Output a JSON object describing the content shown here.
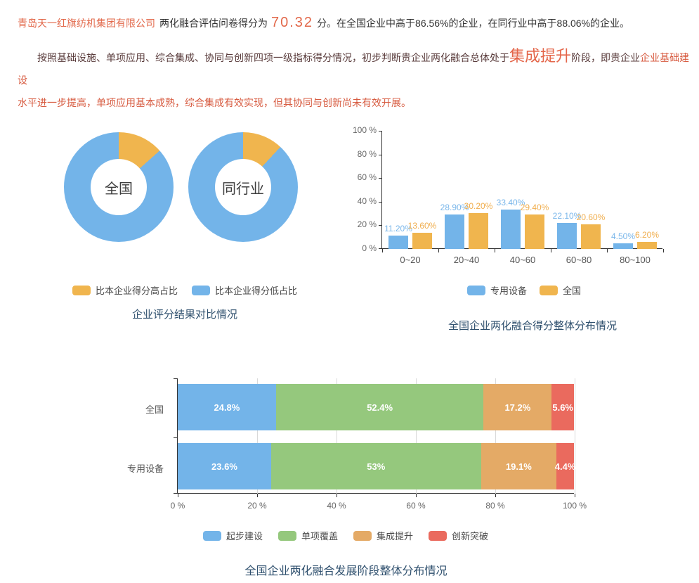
{
  "colors": {
    "blue": "#73b4e9",
    "yellow": "#f0b54e",
    "green": "#95c87d",
    "orange": "#e4aa66",
    "red": "#ea6a5e",
    "title": "#2f506e",
    "accent": "#e2684a",
    "dark_red_text": "#5a3c3c",
    "orange_text": "#d75b40",
    "blue_label": "#79b6ea",
    "yellow_label": "#f0ae4e"
  },
  "header": {
    "company": "青岛天一红旗纺机集团有限公司",
    "score_label": "两化融合评估问卷得分为",
    "score": "70.32",
    "score_suffix": "分。在全国企业中高于86.56%的企业，在同行业中高于88.06%的企业。",
    "para2_part1": "按照基础设施、单项应用、综合集成、协同与创新四项一级指标得分情况，初步判断贵企业两化融合总体处于",
    "para2_stage": "集成提升",
    "para2_part2": "阶段，即贵企业",
    "para2_orange_line1": "企业基础建设",
    "para2_orange_line2": "水平进一步提高，单项应用基本成熟，综合集成有效实现，但其协同与创新尚未有效开展。"
  },
  "chart_data": [
    {
      "type": "pie",
      "subtype": "donut-pair",
      "title": "企业评分结果对比情况",
      "legend": [
        {
          "label": "比本企业得分高占比",
          "color_key": "yellow"
        },
        {
          "label": "比本企业得分低占比",
          "color_key": "blue"
        }
      ],
      "donuts": [
        {
          "label": "全国",
          "high_pct": 13.44,
          "low_pct": 86.56
        },
        {
          "label": "同行业",
          "high_pct": 11.94,
          "low_pct": 88.06
        }
      ]
    },
    {
      "type": "bar",
      "title": "全国企业两化融合得分整体分布情况",
      "categories": [
        "0~20",
        "20~40",
        "40~60",
        "60~80",
        "80~100"
      ],
      "series": [
        {
          "name": "专用设备",
          "color_key": "blue",
          "label_color_key": "blue_label",
          "values": [
            11.2,
            28.9,
            33.4,
            22.1,
            4.5
          ],
          "labels": [
            "11.20%",
            "28.90%",
            "33.40%",
            "22.10%",
            "4.50%"
          ]
        },
        {
          "name": "全国",
          "color_key": "yellow",
          "label_color_key": "yellow_label",
          "values": [
            13.6,
            30.2,
            29.4,
            20.6,
            6.2
          ],
          "labels": [
            "13.60%",
            "30.20%",
            "29.40%",
            "20.60%",
            "6.20%"
          ]
        }
      ],
      "y_ticks": [
        "0 %",
        "20 %",
        "40 %",
        "60 %",
        "80 %",
        "100 %"
      ],
      "ylim": [
        0,
        100
      ],
      "grid": false,
      "legend_position": "bottom"
    },
    {
      "type": "bar",
      "subtype": "stacked-horizontal",
      "title": "全国企业两化融合发展阶段整体分布情况",
      "segments": [
        {
          "name": "起步建设",
          "color_key": "blue"
        },
        {
          "name": "单项覆盖",
          "color_key": "green"
        },
        {
          "name": "集成提升",
          "color_key": "orange"
        },
        {
          "name": "创新突破",
          "color_key": "red"
        }
      ],
      "rows": [
        {
          "label": "全国",
          "values": [
            24.8,
            52.4,
            17.2,
            5.6
          ],
          "labels": [
            "24.8%",
            "52.4%",
            "17.2%",
            "5.6%"
          ]
        },
        {
          "label": "专用设备",
          "values": [
            23.6,
            53,
            19.1,
            4.4
          ],
          "labels": [
            "23.6%",
            "53%",
            "19.1%",
            "4.4%"
          ]
        }
      ],
      "x_ticks": [
        "0 %",
        "20 %",
        "40 %",
        "60 %",
        "80 %",
        "100 %"
      ],
      "xlim": [
        0,
        100
      ],
      "grid": true,
      "legend_position": "bottom"
    }
  ]
}
